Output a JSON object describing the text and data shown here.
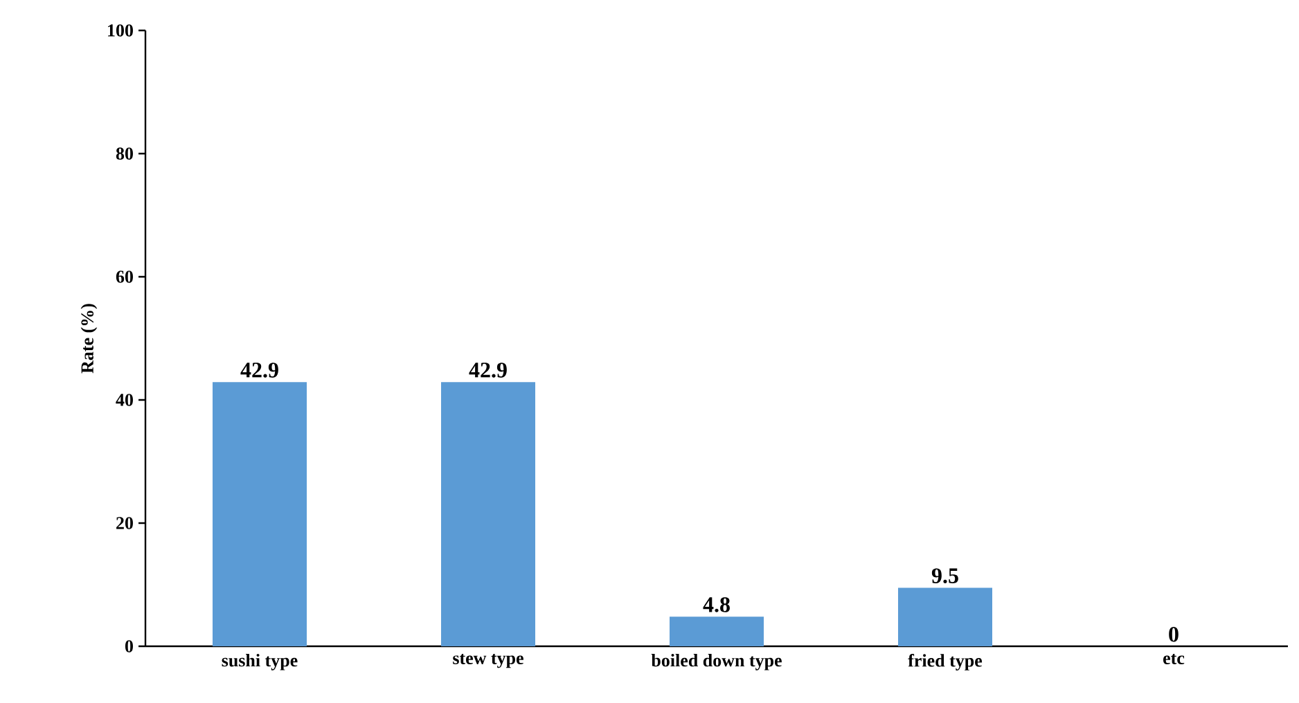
{
  "chart_data": {
    "type": "bar",
    "ylabel": "Rate (%)",
    "categories": [
      "sushi type",
      "stew type",
      "boiled down type",
      "fried type",
      "etc"
    ],
    "values": [
      42.9,
      42.9,
      4.8,
      9.5,
      0
    ],
    "color": "#5b9bd5",
    "ylim": [
      0,
      100
    ],
    "yticks": [
      0,
      20,
      40,
      60,
      80,
      100
    ],
    "data_labels": true
  }
}
